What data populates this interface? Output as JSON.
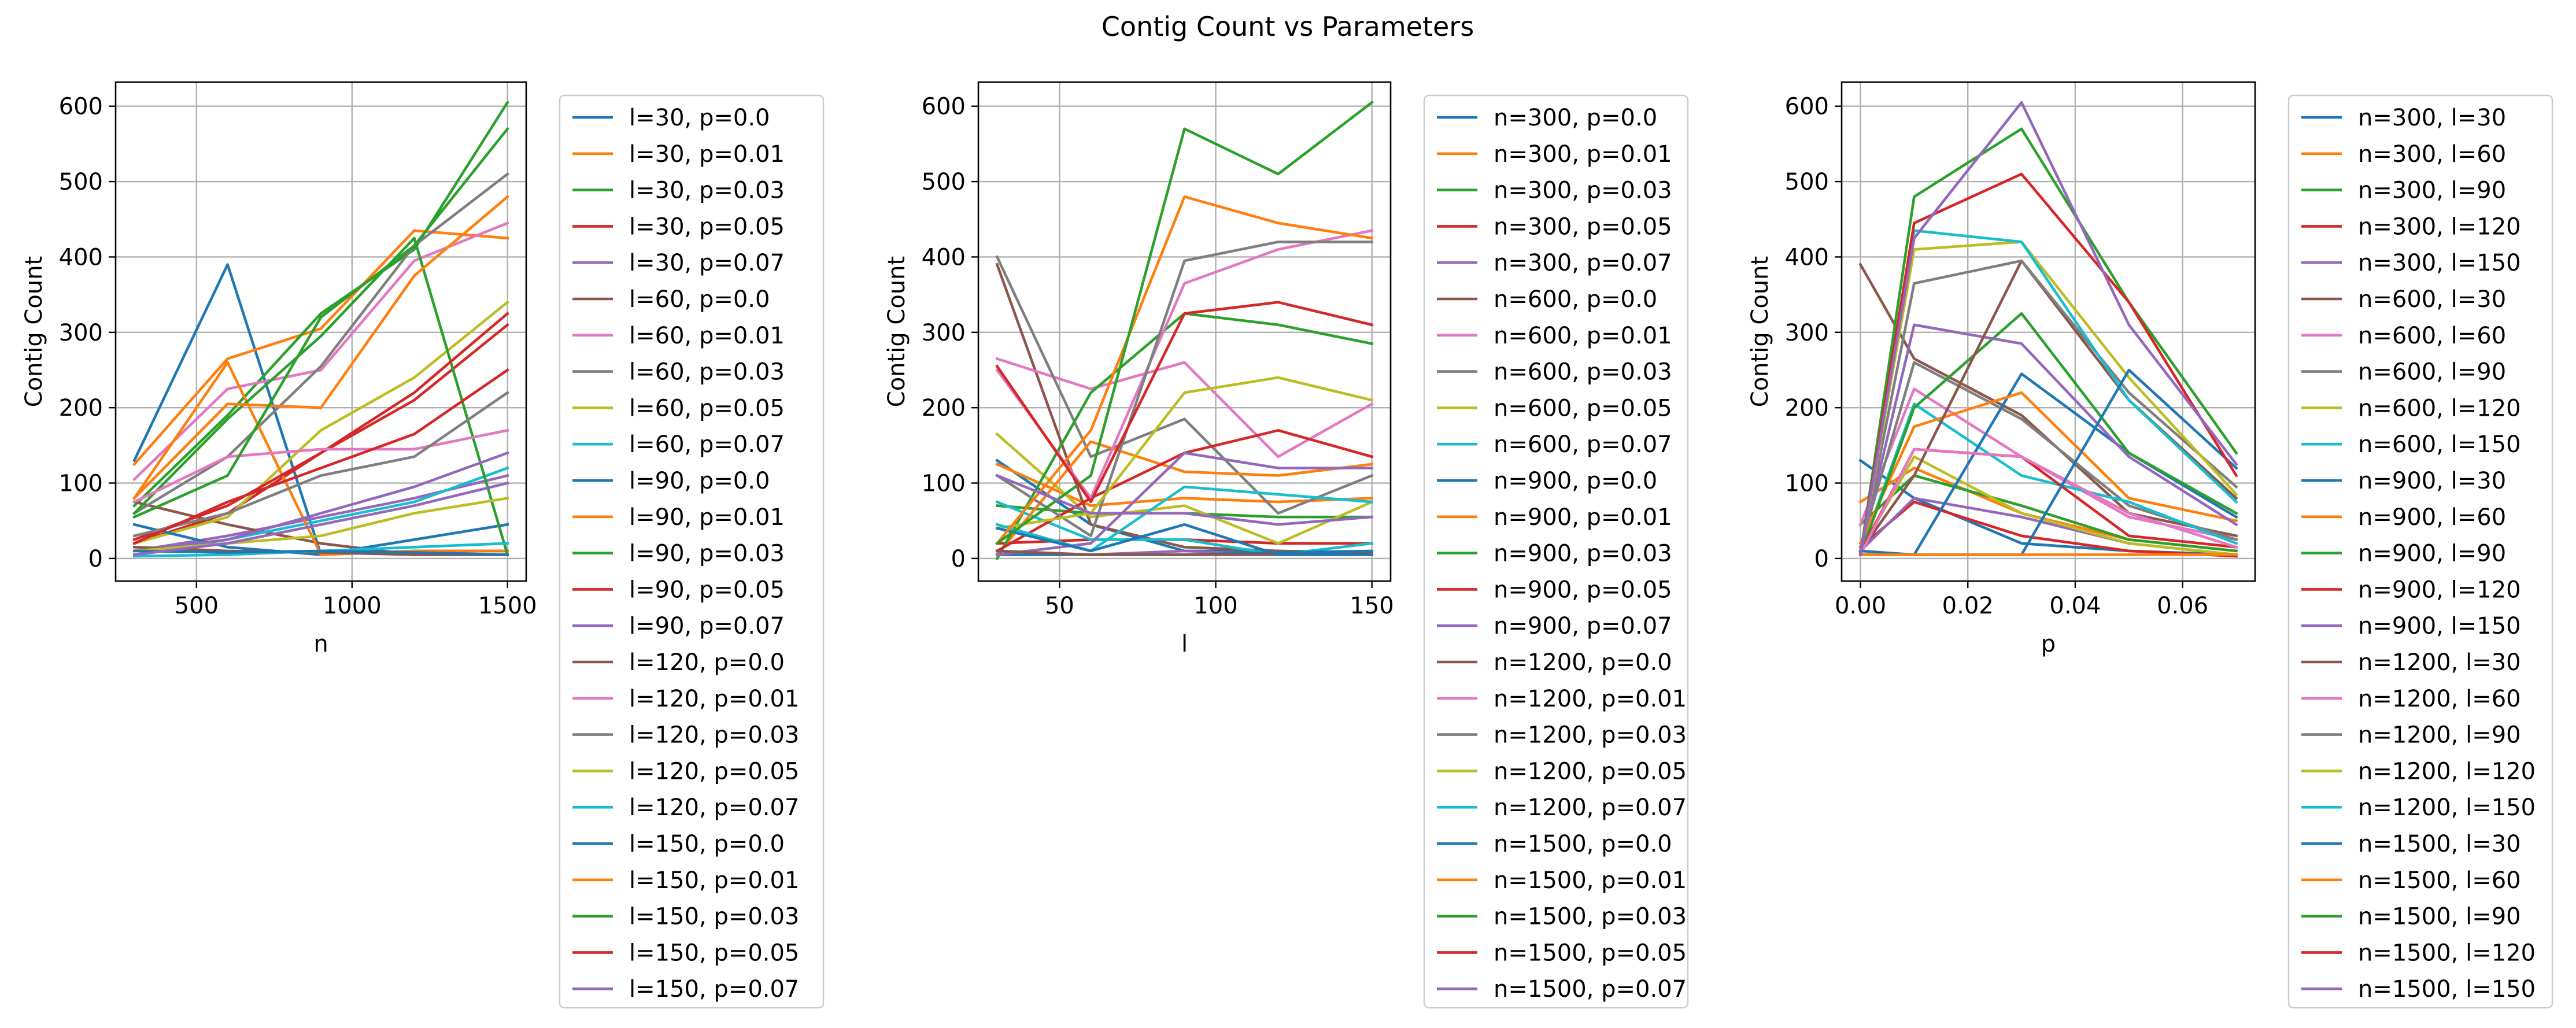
{
  "figure_title": "Contig Count vs Parameters",
  "chart_data": [
    {
      "type": "line",
      "title": "",
      "xlabel": "n",
      "ylabel": "Contig Count",
      "x": [
        300,
        600,
        900,
        1200,
        1500
      ],
      "xlim": [
        240,
        1560
      ],
      "ylim": [
        -30,
        632
      ],
      "xticks": [
        500,
        1000,
        1500
      ],
      "yticks": [
        0,
        100,
        200,
        300,
        400,
        500,
        600
      ],
      "grid": true,
      "legend_position": "outside-right",
      "series": [
        {
          "name": "l=30, p=0.0",
          "color": "#1f77b4",
          "values": [
            130,
            390,
            5,
            10,
            10
          ]
        },
        {
          "name": "l=30, p=0.01",
          "color": "#ff7f0e",
          "values": [
            125,
            265,
            305,
            435,
            425
          ]
        },
        {
          "name": "l=30, p=0.03",
          "color": "#2ca02c",
          "values": [
            70,
            190,
            325,
            410,
            605
          ]
        },
        {
          "name": "l=30, p=0.05",
          "color": "#d62728",
          "values": [
            20,
            60,
            140,
            210,
            310
          ]
        },
        {
          "name": "l=30, p=0.07",
          "color": "#9467bd",
          "values": [
            10,
            30,
            55,
            80,
            110
          ]
        },
        {
          "name": "l=60, p=0.0",
          "color": "#8c564b",
          "values": [
            75,
            45,
            20,
            5,
            5
          ]
        },
        {
          "name": "l=60, p=0.01",
          "color": "#e377c2",
          "values": [
            105,
            225,
            250,
            395,
            445
          ]
        },
        {
          "name": "l=60, p=0.03",
          "color": "#7f7f7f",
          "values": [
            60,
            135,
            255,
            415,
            510
          ]
        },
        {
          "name": "l=60, p=0.05",
          "color": "#bcbd22",
          "values": [
            20,
            55,
            170,
            240,
            340
          ]
        },
        {
          "name": "l=60, p=0.07",
          "color": "#17becf",
          "values": [
            5,
            25,
            50,
            75,
            120
          ]
        },
        {
          "name": "l=90, p=0.0",
          "color": "#1f77b4",
          "values": [
            45,
            15,
            5,
            25,
            45
          ]
        },
        {
          "name": "l=90, p=0.01",
          "color": "#ff7f0e",
          "values": [
            80,
            260,
            5,
            10,
            10
          ]
        },
        {
          "name": "l=90, p=0.03",
          "color": "#2ca02c",
          "values": [
            60,
            185,
            295,
            425,
            5
          ]
        },
        {
          "name": "l=90, p=0.05",
          "color": "#d62728",
          "values": [
            25,
            70,
            140,
            220,
            325
          ]
        },
        {
          "name": "l=90, p=0.07",
          "color": "#9467bd",
          "values": [
            10,
            25,
            60,
            95,
            140
          ]
        },
        {
          "name": "l=120, p=0.0",
          "color": "#8c564b",
          "values": [
            15,
            10,
            8,
            5,
            5
          ]
        },
        {
          "name": "l=120, p=0.01",
          "color": "#e377c2",
          "values": [
            75,
            135,
            145,
            145,
            170
          ]
        },
        {
          "name": "l=120, p=0.03",
          "color": "#7f7f7f",
          "values": [
            30,
            60,
            110,
            135,
            220
          ]
        },
        {
          "name": "l=120, p=0.05",
          "color": "#bcbd22",
          "values": [
            10,
            20,
            30,
            60,
            80
          ]
        },
        {
          "name": "l=120, p=0.07",
          "color": "#17becf",
          "values": [
            3,
            5,
            10,
            15,
            20
          ]
        },
        {
          "name": "l=150, p=0.0",
          "color": "#1f77b4",
          "values": [
            10,
            8,
            10,
            8,
            5
          ]
        },
        {
          "name": "l=150, p=0.01",
          "color": "#ff7f0e",
          "values": [
            80,
            205,
            200,
            375,
            480
          ]
        },
        {
          "name": "l=150, p=0.03",
          "color": "#2ca02c",
          "values": [
            55,
            110,
            320,
            415,
            570
          ]
        },
        {
          "name": "l=150, p=0.05",
          "color": "#d62728",
          "values": [
            20,
            75,
            120,
            165,
            250
          ]
        },
        {
          "name": "l=150, p=0.07",
          "color": "#9467bd",
          "values": [
            5,
            20,
            45,
            70,
            100
          ]
        }
      ]
    },
    {
      "type": "line",
      "title": "",
      "xlabel": "l",
      "ylabel": "Contig Count",
      "x": [
        30,
        60,
        90,
        120,
        150
      ],
      "xlim": [
        24,
        156
      ],
      "ylim": [
        -30,
        632
      ],
      "xticks": [
        50,
        100,
        150
      ],
      "yticks": [
        0,
        100,
        200,
        300,
        400,
        500,
        600
      ],
      "grid": true,
      "legend_position": "outside-right",
      "series": [
        {
          "name": "n=300, p=0.0",
          "color": "#1f77b4",
          "values": [
            130,
            45,
            10,
            10,
            5
          ]
        },
        {
          "name": "n=300, p=0.01",
          "color": "#ff7f0e",
          "values": [
            125,
            70,
            80,
            75,
            80
          ]
        },
        {
          "name": "n=300, p=0.03",
          "color": "#2ca02c",
          "values": [
            70,
            60,
            60,
            55,
            55
          ]
        },
        {
          "name": "n=300, p=0.05",
          "color": "#d62728",
          "values": [
            20,
            25,
            25,
            20,
            20
          ]
        },
        {
          "name": "n=300, p=0.07",
          "color": "#9467bd",
          "values": [
            10,
            5,
            10,
            5,
            5
          ]
        },
        {
          "name": "n=600, p=0.0",
          "color": "#8c564b",
          "values": [
            390,
            45,
            15,
            10,
            8
          ]
        },
        {
          "name": "n=600, p=0.01",
          "color": "#e377c2",
          "values": [
            265,
            225,
            260,
            135,
            205
          ]
        },
        {
          "name": "n=600, p=0.03",
          "color": "#7f7f7f",
          "values": [
            400,
            135,
            185,
            60,
            110
          ]
        },
        {
          "name": "n=600, p=0.05",
          "color": "#bcbd22",
          "values": [
            165,
            55,
            70,
            20,
            75
          ]
        },
        {
          "name": "n=600, p=0.07",
          "color": "#17becf",
          "values": [
            75,
            25,
            25,
            5,
            20
          ]
        },
        {
          "name": "n=900, p=0.0",
          "color": "#1f77b4",
          "values": [
            5,
            5,
            5,
            8,
            10
          ]
        },
        {
          "name": "n=900, p=0.01",
          "color": "#ff7f0e",
          "values": [
            5,
            155,
            115,
            110,
            125
          ]
        },
        {
          "name": "n=900, p=0.03",
          "color": "#2ca02c",
          "values": [
            0,
            220,
            325,
            310,
            285
          ]
        },
        {
          "name": "n=900, p=0.05",
          "color": "#d62728",
          "values": [
            10,
            80,
            140,
            170,
            135
          ]
        },
        {
          "name": "n=900, p=0.07",
          "color": "#9467bd",
          "values": [
            5,
            20,
            140,
            120,
            120
          ]
        },
        {
          "name": "n=1200, p=0.0",
          "color": "#8c564b",
          "values": [
            10,
            5,
            5,
            5,
            5
          ]
        },
        {
          "name": "n=1200, p=0.01",
          "color": "#e377c2",
          "values": [
            250,
            80,
            365,
            410,
            435
          ]
        },
        {
          "name": "n=1200, p=0.03",
          "color": "#7f7f7f",
          "values": [
            110,
            30,
            395,
            420,
            420
          ]
        },
        {
          "name": "n=1200, p=0.05",
          "color": "#bcbd22",
          "values": [
            40,
            60,
            220,
            240,
            210
          ]
        },
        {
          "name": "n=1200, p=0.07",
          "color": "#17becf",
          "values": [
            45,
            10,
            95,
            85,
            75
          ]
        },
        {
          "name": "n=1500, p=0.0",
          "color": "#1f77b4",
          "values": [
            40,
            10,
            45,
            5,
            5
          ]
        },
        {
          "name": "n=1500, p=0.01",
          "color": "#ff7f0e",
          "values": [
            20,
            170,
            480,
            445,
            425
          ]
        },
        {
          "name": "n=1500, p=0.03",
          "color": "#2ca02c",
          "values": [
            20,
            110,
            570,
            510,
            605
          ]
        },
        {
          "name": "n=1500, p=0.05",
          "color": "#d62728",
          "values": [
            255,
            75,
            325,
            340,
            310
          ]
        },
        {
          "name": "n=1500, p=0.07",
          "color": "#9467bd",
          "values": [
            110,
            60,
            60,
            45,
            55
          ]
        }
      ]
    },
    {
      "type": "line",
      "title": "",
      "xlabel": "p",
      "ylabel": "Contig Count",
      "x": [
        0.0,
        0.01,
        0.03,
        0.05,
        0.07
      ],
      "xlim": [
        -0.0035,
        0.0735
      ],
      "ylim": [
        -30,
        632
      ],
      "xticks": [
        0.0,
        0.02,
        0.04,
        0.06
      ],
      "xtick_labels": [
        "0.00",
        "0.02",
        "0.04",
        "0.06"
      ],
      "yticks": [
        0,
        100,
        200,
        300,
        400,
        500,
        600
      ],
      "grid": true,
      "legend_position": "outside-right",
      "series": [
        {
          "name": "n=300, l=30",
          "color": "#1f77b4",
          "values": [
            130,
            80,
            20,
            10,
            5
          ]
        },
        {
          "name": "n=300, l=60",
          "color": "#ff7f0e",
          "values": [
            75,
            120,
            60,
            25,
            10
          ]
        },
        {
          "name": "n=300, l=90",
          "color": "#2ca02c",
          "values": [
            45,
            110,
            70,
            25,
            10
          ]
        },
        {
          "name": "n=300, l=120",
          "color": "#d62728",
          "values": [
            15,
            75,
            30,
            10,
            3
          ]
        },
        {
          "name": "n=300, l=150",
          "color": "#9467bd",
          "values": [
            10,
            80,
            55,
            20,
            5
          ]
        },
        {
          "name": "n=600, l=30",
          "color": "#8c564b",
          "values": [
            390,
            265,
            190,
            60,
            30
          ]
        },
        {
          "name": "n=600, l=60",
          "color": "#e377c2",
          "values": [
            45,
            225,
            135,
            55,
            25
          ]
        },
        {
          "name": "n=600, l=90",
          "color": "#7f7f7f",
          "values": [
            15,
            260,
            185,
            70,
            25
          ]
        },
        {
          "name": "n=600, l=120",
          "color": "#bcbd22",
          "values": [
            10,
            135,
            60,
            20,
            5
          ]
        },
        {
          "name": "n=600, l=150",
          "color": "#17becf",
          "values": [
            8,
            205,
            110,
            75,
            20
          ]
        },
        {
          "name": "n=900, l=30",
          "color": "#1f77b4",
          "values": [
            5,
            5,
            245,
            140,
            55
          ]
        },
        {
          "name": "n=900, l=60",
          "color": "#ff7f0e",
          "values": [
            20,
            175,
            220,
            80,
            50
          ]
        },
        {
          "name": "n=900, l=90",
          "color": "#2ca02c",
          "values": [
            5,
            200,
            325,
            140,
            60
          ]
        },
        {
          "name": "n=900, l=120",
          "color": "#d62728",
          "values": [
            8,
            145,
            135,
            30,
            15
          ]
        },
        {
          "name": "n=900, l=150",
          "color": "#9467bd",
          "values": [
            10,
            310,
            285,
            135,
            45
          ]
        },
        {
          "name": "n=1200, l=30",
          "color": "#8c564b",
          "values": [
            10,
            110,
            395,
            210,
            80
          ]
        },
        {
          "name": "n=1200, l=60",
          "color": "#e377c2",
          "values": [
            5,
            145,
            135,
            60,
            15
          ]
        },
        {
          "name": "n=1200, l=90",
          "color": "#7f7f7f",
          "values": [
            5,
            365,
            395,
            220,
            95
          ]
        },
        {
          "name": "n=1200, l=120",
          "color": "#bcbd22",
          "values": [
            5,
            410,
            420,
            240,
            85
          ]
        },
        {
          "name": "n=1200, l=150",
          "color": "#17becf",
          "values": [
            5,
            435,
            420,
            210,
            75
          ]
        },
        {
          "name": "n=1500, l=30",
          "color": "#1f77b4",
          "values": [
            10,
            5,
            5,
            250,
            120
          ]
        },
        {
          "name": "n=1500, l=60",
          "color": "#ff7f0e",
          "values": [
            5,
            5,
            5,
            5,
            5
          ]
        },
        {
          "name": "n=1500, l=90",
          "color": "#2ca02c",
          "values": [
            5,
            480,
            570,
            340,
            140
          ]
        },
        {
          "name": "n=1500, l=120",
          "color": "#d62728",
          "values": [
            5,
            445,
            510,
            340,
            110
          ]
        },
        {
          "name": "n=1500, l=150",
          "color": "#9467bd",
          "values": [
            5,
            425,
            605,
            310,
            125
          ]
        }
      ]
    }
  ]
}
